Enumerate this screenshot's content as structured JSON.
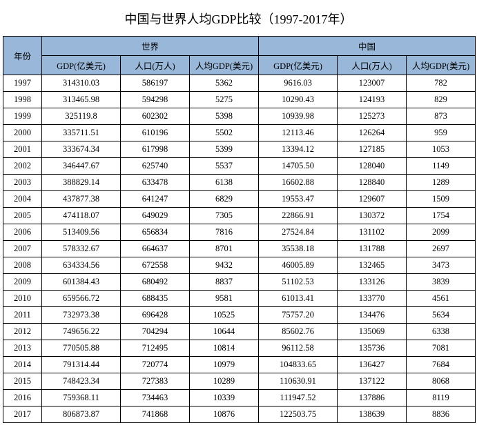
{
  "title": "中国与世界人均GDP比较（1997-2017年）",
  "header": {
    "year": "年份",
    "world": "世界",
    "china": "中国",
    "gdp": "GDP(亿美元)",
    "pop": "人口(万人)",
    "pc": "人均GDP(美元)"
  },
  "colors": {
    "header_bg": "#99b8d9",
    "border": "#000000",
    "background": "#ffffff",
    "text": "#000000"
  },
  "columns": [
    "year",
    "world_gdp",
    "world_pop",
    "world_pc",
    "china_gdp",
    "china_pop",
    "china_pc"
  ],
  "rows": [
    {
      "year": "1997",
      "world_gdp": "314310.03",
      "world_pop": "586197",
      "world_pc": "5362",
      "china_gdp": "9616.03",
      "china_pop": "123007",
      "china_pc": "782"
    },
    {
      "year": "1998",
      "world_gdp": "313465.98",
      "world_pop": "594298",
      "world_pc": "5275",
      "china_gdp": "10290.43",
      "china_pop": "124193",
      "china_pc": "829"
    },
    {
      "year": "1999",
      "world_gdp": "325119.8",
      "world_pop": "602302",
      "world_pc": "5398",
      "china_gdp": "10939.98",
      "china_pop": "125273",
      "china_pc": "873"
    },
    {
      "year": "2000",
      "world_gdp": "335711.51",
      "world_pop": "610196",
      "world_pc": "5502",
      "china_gdp": "12113.46",
      "china_pop": "126264",
      "china_pc": "959"
    },
    {
      "year": "2001",
      "world_gdp": "333674.34",
      "world_pop": "617998",
      "world_pc": "5399",
      "china_gdp": "13394.12",
      "china_pop": "127185",
      "china_pc": "1053"
    },
    {
      "year": "2002",
      "world_gdp": "346447.67",
      "world_pop": "625740",
      "world_pc": "5537",
      "china_gdp": "14705.50",
      "china_pop": "128040",
      "china_pc": "1149"
    },
    {
      "year": "2003",
      "world_gdp": "388829.14",
      "world_pop": "633478",
      "world_pc": "6138",
      "china_gdp": "16602.88",
      "china_pop": "128840",
      "china_pc": "1289"
    },
    {
      "year": "2004",
      "world_gdp": "437877.38",
      "world_pop": "641247",
      "world_pc": "6829",
      "china_gdp": "19553.47",
      "china_pop": "129607",
      "china_pc": "1509"
    },
    {
      "year": "2005",
      "world_gdp": "474118.07",
      "world_pop": "649029",
      "world_pc": "7305",
      "china_gdp": "22866.91",
      "china_pop": "130372",
      "china_pc": "1754"
    },
    {
      "year": "2006",
      "world_gdp": "513409.56",
      "world_pop": "656834",
      "world_pc": "7816",
      "china_gdp": "27524.84",
      "china_pop": "131102",
      "china_pc": "2099"
    },
    {
      "year": "2007",
      "world_gdp": "578332.67",
      "world_pop": "664637",
      "world_pc": "8701",
      "china_gdp": "35538.18",
      "china_pop": "131788",
      "china_pc": "2697"
    },
    {
      "year": "2008",
      "world_gdp": "634334.56",
      "world_pop": "672558",
      "world_pc": "9432",
      "china_gdp": "46005.89",
      "china_pop": "132465",
      "china_pc": "3473"
    },
    {
      "year": "2009",
      "world_gdp": "601384.43",
      "world_pop": "680492",
      "world_pc": "8837",
      "china_gdp": "51102.53",
      "china_pop": "133126",
      "china_pc": "3839"
    },
    {
      "year": "2010",
      "world_gdp": "659566.72",
      "world_pop": "688435",
      "world_pc": "9581",
      "china_gdp": "61013.41",
      "china_pop": "133770",
      "china_pc": "4561"
    },
    {
      "year": "2011",
      "world_gdp": "732973.38",
      "world_pop": "696428",
      "world_pc": "10525",
      "china_gdp": "75757.20",
      "china_pop": "134476",
      "china_pc": "5634"
    },
    {
      "year": "2012",
      "world_gdp": "749656.22",
      "world_pop": "704294",
      "world_pc": "10644",
      "china_gdp": "85602.76",
      "china_pop": "135069",
      "china_pc": "6338"
    },
    {
      "year": "2013",
      "world_gdp": "770505.88",
      "world_pop": "712495",
      "world_pc": "10814",
      "china_gdp": "96112.58",
      "china_pop": "135736",
      "china_pc": "7081"
    },
    {
      "year": "2014",
      "world_gdp": "791314.44",
      "world_pop": "720774",
      "world_pc": "10979",
      "china_gdp": "104833.65",
      "china_pop": "136427",
      "china_pc": "7684"
    },
    {
      "year": "2015",
      "world_gdp": "748423.34",
      "world_pop": "727383",
      "world_pc": "10289",
      "china_gdp": "110630.91",
      "china_pop": "137122",
      "china_pc": "8068"
    },
    {
      "year": "2016",
      "world_gdp": "759368.11",
      "world_pop": "734463",
      "world_pc": "10339",
      "china_gdp": "111947.52",
      "china_pop": "137886",
      "china_pc": "8119"
    },
    {
      "year": "2017",
      "world_gdp": "806873.87",
      "world_pop": "741868",
      "world_pc": "10876",
      "china_gdp": "122503.75",
      "china_pop": "138639",
      "china_pc": "8836"
    }
  ]
}
